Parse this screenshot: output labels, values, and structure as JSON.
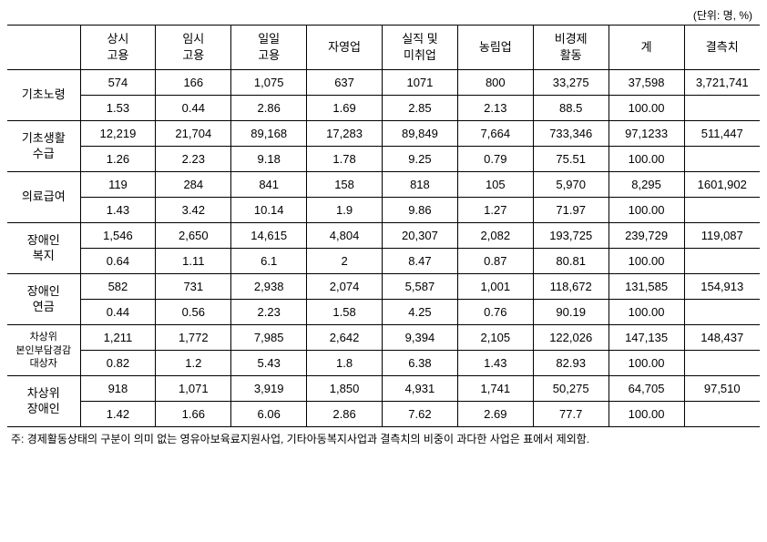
{
  "unit_label": "(단위: 명, %)",
  "columns": [
    "상시\n고용",
    "임시\n고용",
    "일일\n고용",
    "자영업",
    "실직 및\n미취업",
    "농림업",
    "비경제\n활동",
    "계",
    "결측치"
  ],
  "rows": [
    {
      "label": "기초노령",
      "label_class": "",
      "count": [
        "574",
        "166",
        "1,075",
        "637",
        "1071",
        "800",
        "33,275",
        "37,598",
        "3,721,741"
      ],
      "pct": [
        "1.53",
        "0.44",
        "2.86",
        "1.69",
        "2.85",
        "2.13",
        "88.5",
        "100.00",
        ""
      ]
    },
    {
      "label": "기초생활\n수급",
      "label_class": "",
      "count": [
        "12,219",
        "21,704",
        "89,168",
        "17,283",
        "89,849",
        "7,664",
        "733,346",
        "97,1233",
        "511,447"
      ],
      "pct": [
        "1.26",
        "2.23",
        "9.18",
        "1.78",
        "9.25",
        "0.79",
        "75.51",
        "100.00",
        ""
      ]
    },
    {
      "label": "의료급여",
      "label_class": "",
      "count": [
        "119",
        "284",
        "841",
        "158",
        "818",
        "105",
        "5,970",
        "8,295",
        "1601,902"
      ],
      "pct": [
        "1.43",
        "3.42",
        "10.14",
        "1.9",
        "9.86",
        "1.27",
        "71.97",
        "100.00",
        ""
      ]
    },
    {
      "label": "장애인\n복지",
      "label_class": "",
      "count": [
        "1,546",
        "2,650",
        "14,615",
        "4,804",
        "20,307",
        "2,082",
        "193,725",
        "239,729",
        "119,087"
      ],
      "pct": [
        "0.64",
        "1.11",
        "6.1",
        "2",
        "8.47",
        "0.87",
        "80.81",
        "100.00",
        ""
      ]
    },
    {
      "label": "장애인\n연금",
      "label_class": "",
      "count": [
        "582",
        "731",
        "2,938",
        "2,074",
        "5,587",
        "1,001",
        "118,672",
        "131,585",
        "154,913"
      ],
      "pct": [
        "0.44",
        "0.56",
        "2.23",
        "1.58",
        "4.25",
        "0.76",
        "90.19",
        "100.00",
        ""
      ]
    },
    {
      "label": "차상위\n본인부담경감\n대상자",
      "label_class": "small-label",
      "count": [
        "1,211",
        "1,772",
        "7,985",
        "2,642",
        "9,394",
        "2,105",
        "122,026",
        "147,135",
        "148,437"
      ],
      "pct": [
        "0.82",
        "1.2",
        "5.43",
        "1.8",
        "6.38",
        "1.43",
        "82.93",
        "100.00",
        ""
      ]
    },
    {
      "label": "차상위\n장애인",
      "label_class": "",
      "count": [
        "918",
        "1,071",
        "3,919",
        "1,850",
        "4,931",
        "1,741",
        "50,275",
        "64,705",
        "97,510"
      ],
      "pct": [
        "1.42",
        "1.66",
        "6.06",
        "2.86",
        "7.62",
        "2.69",
        "77.7",
        "100.00",
        ""
      ]
    }
  ],
  "footnote": "주: 경제활동상태의 구분이 의미 없는 영유아보육료지원사업, 기타아동복지사업과 결측치의 비중이 과다한 사업은 표에서 제외함."
}
